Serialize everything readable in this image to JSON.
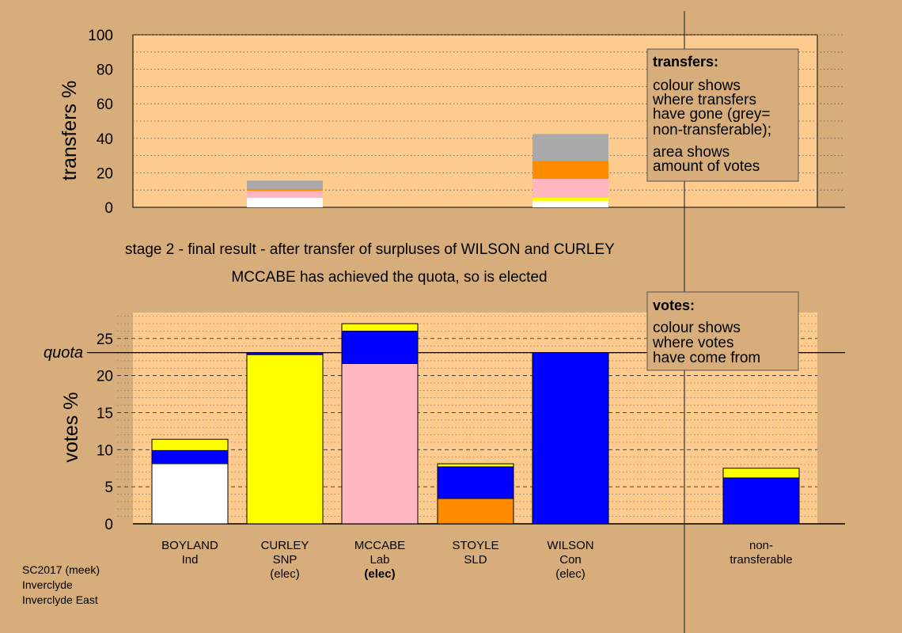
{
  "colors": {
    "background": "#d6ad7b",
    "panel": "#fecb8e",
    "grey": "#a9a9a9",
    "yellow": "#ffff00",
    "blue": "#0000ff",
    "pink": "#ffb6c1",
    "orange": "#ff8c00",
    "white": "#ffffff"
  },
  "stage": {
    "line1": "stage 2 - final result - after transfer of surpluses of WILSON and CURLEY",
    "line2": "MCCABE has achieved the quota, so is elected"
  },
  "legend_transfers": {
    "title": "transfers:",
    "lines": [
      "colour shows",
      "where transfers",
      "have gone (grey=",
      "non-transferable);",
      "area shows",
      "amount of votes"
    ]
  },
  "legend_votes": {
    "title": "votes:",
    "lines": [
      "colour shows",
      "where votes",
      "have come from"
    ]
  },
  "footer": [
    "SC2017 (meek)",
    "Inverclyde",
    "Inverclyde East"
  ],
  "candidates": [
    {
      "name": "BOYLAND",
      "party": "Ind",
      "status": "",
      "status_bold": false
    },
    {
      "name": "CURLEY",
      "party": "SNP",
      "status": "(elec)",
      "status_bold": false
    },
    {
      "name": "MCCABE",
      "party": "Lab",
      "status": "(elec)",
      "status_bold": true
    },
    {
      "name": "STOYLE",
      "party": "SLD",
      "status": "",
      "status_bold": false
    },
    {
      "name": "WILSON",
      "party": "Con",
      "status": "(elec)",
      "status_bold": false
    },
    {
      "name": "",
      "party": "",
      "status": "",
      "status_bold": false
    },
    {
      "name": "non-",
      "party": "transferable",
      "status": "",
      "status_bold": false
    }
  ],
  "chart_data": [
    {
      "type": "bar",
      "stacked": true,
      "ylabel": "transfers %",
      "ylim": [
        0,
        100
      ],
      "yticks": [
        0,
        20,
        40,
        60,
        80,
        100
      ],
      "categories": [
        "BOYLAND",
        "CURLEY",
        "MCCABE",
        "STOYLE",
        "WILSON",
        "",
        "non-transferable"
      ],
      "stacks": [
        {
          "category": "CURLEY",
          "segments": [
            {
              "color": "#ffffff",
              "value": 5.5
            },
            {
              "color": "#ffb6c1",
              "value": 4
            },
            {
              "color": "#ff8c00",
              "value": 1
            },
            {
              "color": "#a9a9a9",
              "value": 5
            }
          ]
        },
        {
          "category": "WILSON",
          "segments": [
            {
              "color": "#ffffff",
              "value": 3.5
            },
            {
              "color": "#ffff00",
              "value": 2
            },
            {
              "color": "#ffb6c1",
              "value": 11
            },
            {
              "color": "#ff8c00",
              "value": 10.5
            },
            {
              "color": "#a9a9a9",
              "value": 15.5
            }
          ]
        }
      ]
    },
    {
      "type": "bar",
      "stacked": true,
      "ylabel": "votes %",
      "ylim": [
        0,
        28.5
      ],
      "yticks": [
        0,
        5,
        10,
        15,
        20,
        25
      ],
      "quota": 23.1,
      "quota_label": "quota",
      "categories": [
        "BOYLAND",
        "CURLEY",
        "MCCABE",
        "STOYLE",
        "WILSON",
        "",
        "non-transferable"
      ],
      "stacks": [
        {
          "category": "BOYLAND",
          "segments": [
            {
              "color": "#ffffff",
              "value": 8.1
            },
            {
              "color": "#0000ff",
              "value": 1.8
            },
            {
              "color": "#ffff00",
              "value": 1.5
            }
          ]
        },
        {
          "category": "CURLEY",
          "segments": [
            {
              "color": "#ffff00",
              "value": 22.8
            },
            {
              "color": "#0000ff",
              "value": 0.3
            }
          ]
        },
        {
          "category": "MCCABE",
          "segments": [
            {
              "color": "#ffb6c1",
              "value": 21.6
            },
            {
              "color": "#0000ff",
              "value": 4.4
            },
            {
              "color": "#ffff00",
              "value": 1.0
            }
          ]
        },
        {
          "category": "STOYLE",
          "segments": [
            {
              "color": "#ff8c00",
              "value": 3.4
            },
            {
              "color": "#0000ff",
              "value": 4.3
            },
            {
              "color": "#ffff00",
              "value": 0.4
            }
          ]
        },
        {
          "category": "WILSON",
          "segments": [
            {
              "color": "#0000ff",
              "value": 23.1
            }
          ]
        },
        {
          "category": "non-transferable",
          "segments": [
            {
              "color": "#0000ff",
              "value": 6.2
            },
            {
              "color": "#ffff00",
              "value": 1.3
            }
          ]
        }
      ]
    }
  ]
}
